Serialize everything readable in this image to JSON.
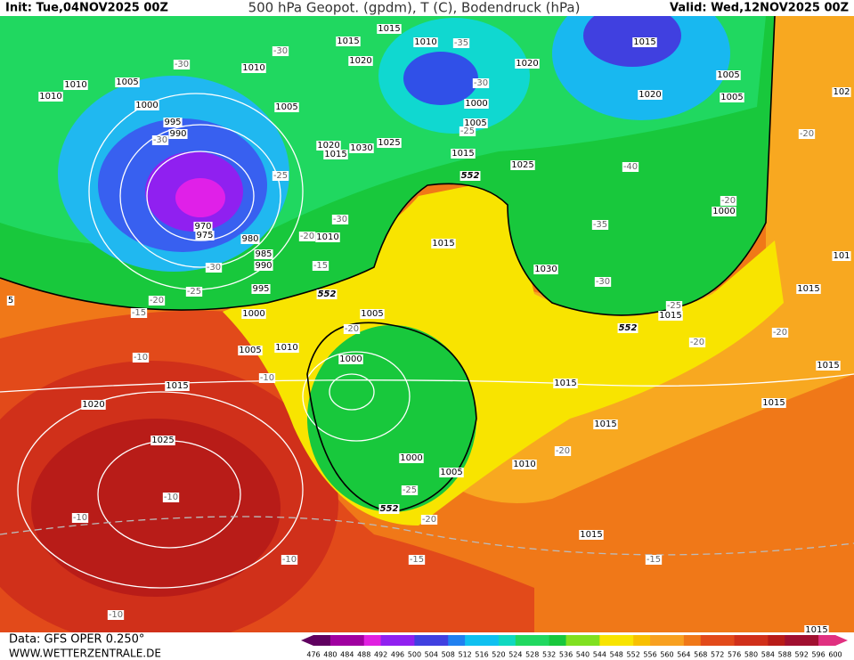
{
  "header": {
    "init": "Init: Tue,04NOV2025 00Z",
    "title": "500 hPa Geopot. (gpdm), T (C), Bodendruck (hPa)",
    "valid": "Valid: Wed,12NOV2025 00Z"
  },
  "footer": {
    "data_source": "Data: GFS OPER 0.250°",
    "website": "WWW.WETTERZENTRALE.DE"
  },
  "colorbar": {
    "levels": [
      476,
      480,
      484,
      488,
      492,
      496,
      500,
      504,
      508,
      512,
      516,
      520,
      524,
      528,
      532,
      536,
      540,
      544,
      548,
      552,
      556,
      560,
      564,
      568,
      572,
      576,
      580,
      584,
      588,
      592,
      596,
      600
    ]
  },
  "map_labels": {
    "pressure": [
      "1015",
      "1015",
      "1010",
      "1015",
      "1010",
      "1020",
      "1020",
      "1010",
      "1005",
      "1010",
      "1005",
      "1020",
      "1005",
      "1000",
      "1000",
      "995",
      "1005",
      "1005",
      "990",
      "1020",
      "1030",
      "1025",
      "1015",
      "1015",
      "1025",
      "970",
      "975",
      "980",
      "1010",
      "1015",
      "1000",
      "985",
      "990",
      "1030",
      "995",
      "1000",
      "1005",
      "1015",
      "1015",
      "1005",
      "1010",
      "1000",
      "1015",
      "1015",
      "1015",
      "1020",
      "1015",
      "1015",
      "1025",
      "1000",
      "1005",
      "1010",
      "1015",
      "1015",
      "102",
      "101",
      "5"
    ],
    "temperature": [
      "-30",
      "-30",
      "-35",
      "-30",
      "-25",
      "-30",
      "-25",
      "-40",
      "-20",
      "-20",
      "-30",
      "-35",
      "-20",
      "-30",
      "-15",
      "-25",
      "-20",
      "-15",
      "-30",
      "-25",
      "-20",
      "-20",
      "-20",
      "-10",
      "-10",
      "-20",
      "-25",
      "-20",
      "-10",
      "-10",
      "-15",
      "-15",
      "-10",
      "-10"
    ],
    "geopotential": [
      "552",
      "552",
      "552",
      "552"
    ]
  }
}
